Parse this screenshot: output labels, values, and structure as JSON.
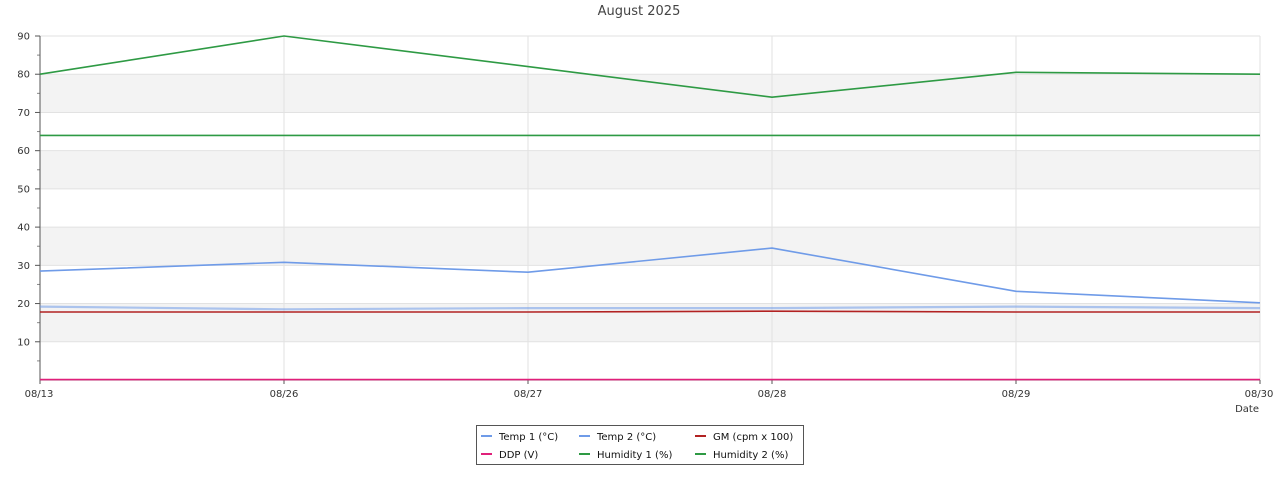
{
  "chart_data": {
    "type": "line",
    "title": "August 2025",
    "xlabel": "Date",
    "ylabel": "",
    "ylim": [
      0,
      90
    ],
    "yticks": [
      10,
      20,
      30,
      40,
      50,
      60,
      70,
      80,
      90
    ],
    "categories": [
      "08/13",
      "08/26",
      "08/27",
      "08/28",
      "08/29",
      "08/30"
    ],
    "grid": true,
    "legend_position": "bottom-center",
    "series": [
      {
        "name": "Temp 1 (°C)",
        "color": "#6f9be8",
        "values": [
          28.5,
          30.8,
          28.2,
          34.5,
          23.2,
          20.2
        ]
      },
      {
        "name": "Temp 2 (°C)",
        "color": "#6f9be8",
        "values": [
          19.2,
          18.5,
          18.8,
          18.8,
          19.2,
          18.8
        ]
      },
      {
        "name": "GM (cpm x 100)",
        "color": "#b22222",
        "values": [
          17.8,
          17.8,
          17.8,
          18.0,
          17.8,
          17.8
        ]
      },
      {
        "name": "DDP (V)",
        "color": "#e0207a",
        "values": [
          0.1,
          0.1,
          0.1,
          0.1,
          0.1,
          0.1
        ]
      },
      {
        "name": "Humidity 1 (%)",
        "color": "#2e9a44",
        "values": [
          80,
          90,
          82,
          74,
          80.5,
          80
        ]
      },
      {
        "name": "Humidity 2 (%)",
        "color": "#2e9a44",
        "values": [
          64,
          64,
          64,
          64,
          64,
          64
        ]
      }
    ]
  }
}
